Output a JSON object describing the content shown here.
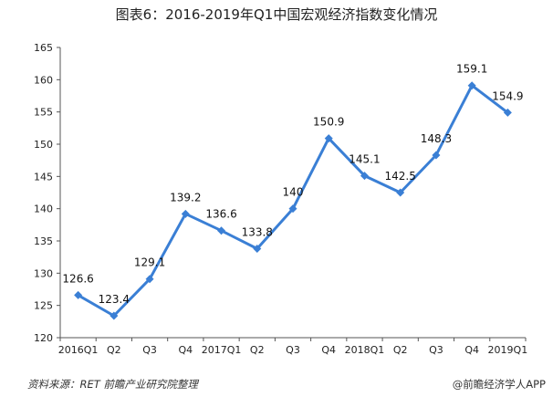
{
  "title": "图表6：2016-2019年Q1中国宏观经济指数变化情况",
  "footer": {
    "source": "资料来源：RET 前瞻产业研究院整理",
    "brand": "@前瞻经济学人APP"
  },
  "colors": {
    "line": "#3a7fd5",
    "axis": "#555555"
  },
  "chart_data": {
    "type": "line",
    "categories": [
      "2016Q1",
      "Q2",
      "Q3",
      "Q4",
      "2017Q1",
      "Q2",
      "Q3",
      "Q4",
      "2018Q1",
      "Q2",
      "Q3",
      "Q4",
      "2019Q1"
    ],
    "series": [
      {
        "values": [
          126.6,
          123.4,
          129.1,
          139.2,
          136.6,
          133.8,
          140,
          150.9,
          145.1,
          142.5,
          148.3,
          159.1,
          154.9
        ]
      }
    ],
    "data_labels": [
      "126.6",
      "123.4",
      "129.1",
      "139.2",
      "136.6",
      "133.8",
      "140",
      "150.9",
      "145.1",
      "142.5",
      "148.3",
      "159.1",
      "154.9"
    ],
    "yticks": [
      "120",
      "125",
      "130",
      "135",
      "140",
      "145",
      "150",
      "155",
      "160",
      "165"
    ],
    "ylim": [
      120,
      165
    ],
    "grid": false,
    "legend": "none"
  }
}
